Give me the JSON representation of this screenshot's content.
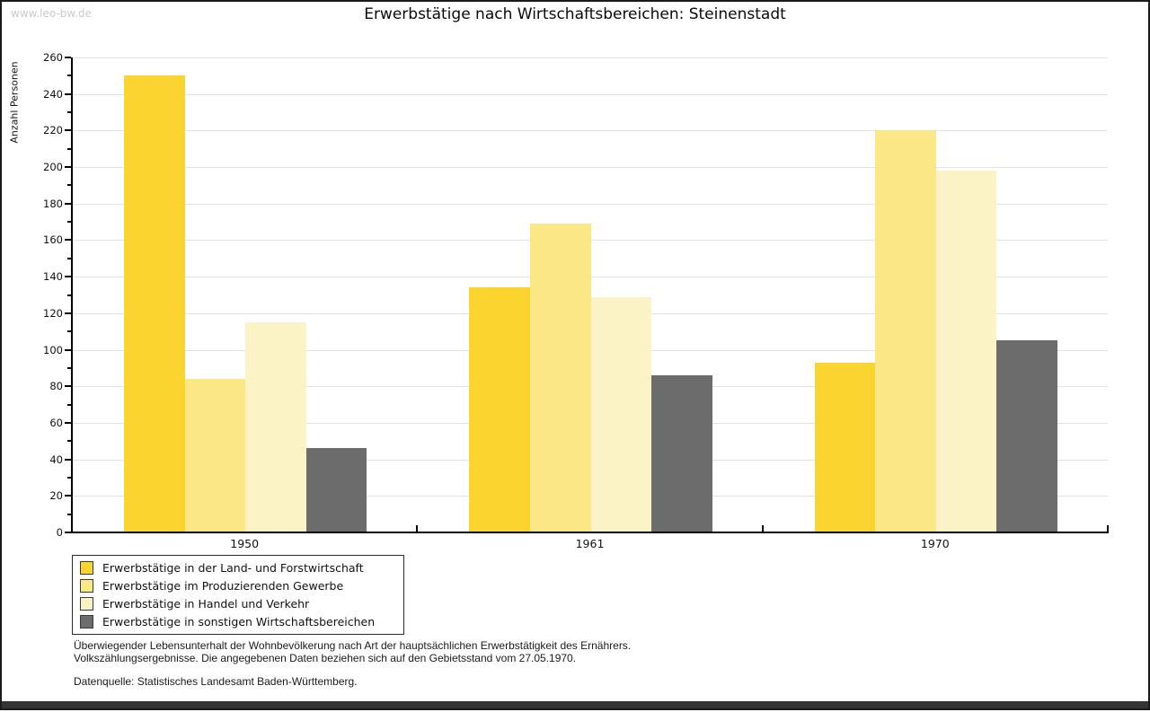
{
  "watermark": "www.leo-bw.de",
  "title": "Erwerbstätige nach Wirtschaftsbereichen: Steinenstadt",
  "chart_data": {
    "type": "bar",
    "title": "Erwerbstätige nach Wirtschaftsbereichen: Steinenstadt",
    "ylabel": "Anzahl Personen",
    "xlabel": "",
    "categories": [
      "1950",
      "1961",
      "1970"
    ],
    "series": [
      {
        "name": "Erwerbstätige in der Land- und Forstwirtschaft",
        "color": "#fcd42f",
        "values": [
          250,
          134,
          93
        ]
      },
      {
        "name": "Erwerbstätige im Produzierenden Gewerbe",
        "color": "#fce787",
        "values": [
          84,
          169,
          220
        ]
      },
      {
        "name": "Erwerbstätige in Handel und Verkehr",
        "color": "#fbf3c5",
        "values": [
          115,
          129,
          198
        ]
      },
      {
        "name": "Erwerbstätige in sonstigen Wirtschaftsbereichen",
        "color": "#6c6c6c",
        "values": [
          46,
          86,
          105
        ]
      }
    ],
    "ylim": [
      0,
      260
    ],
    "ytick_step": 20,
    "minor_tick_step": 10,
    "grid": true,
    "legend_position": "bottom-left"
  },
  "footnotes": {
    "line1": "Überwiegender Lebensunterhalt der Wohnbevölkerung nach Art der hauptsächlichen Erwerbstätigkeit des Ernährers.",
    "line2": "Volkszählungsergebnisse. Die angegebenen Daten beziehen sich auf den Gebietsstand vom 27.05.1970.",
    "source": "Datenquelle: Statistisches Landesamt Baden-Württemberg."
  }
}
